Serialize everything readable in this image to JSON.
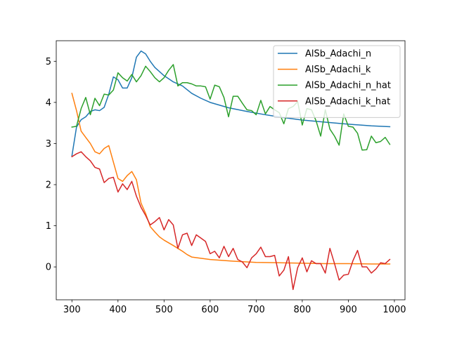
{
  "chart_data": {
    "type": "line",
    "title": "",
    "xlabel": "",
    "ylabel": "",
    "xlim": [
      266,
      1023
    ],
    "ylim": [
      -0.8,
      5.5
    ],
    "xticks": [
      300,
      400,
      500,
      600,
      700,
      800,
      900,
      1000
    ],
    "yticks": [
      0,
      1,
      2,
      3,
      4,
      5
    ],
    "grid": false,
    "legend_position": "top-right",
    "series": [
      {
        "name": "AlSb_Adachi_n",
        "color": "#1f77b4",
        "x": [
          300,
          310,
          320,
          330,
          340,
          350,
          360,
          370,
          380,
          390,
          400,
          410,
          420,
          430,
          440,
          450,
          460,
          470,
          480,
          490,
          500,
          520,
          540,
          560,
          580,
          600,
          640,
          680,
          720,
          760,
          800,
          850,
          900,
          950,
          990
        ],
        "y": [
          2.7,
          3.4,
          3.58,
          3.65,
          3.78,
          3.82,
          3.8,
          3.88,
          4.2,
          4.62,
          4.55,
          4.35,
          4.35,
          4.6,
          5.1,
          5.25,
          5.18,
          5.0,
          4.85,
          4.75,
          4.65,
          4.5,
          4.4,
          4.22,
          4.1,
          4.0,
          3.87,
          3.78,
          3.7,
          3.63,
          3.57,
          3.52,
          3.47,
          3.43,
          3.41
        ]
      },
      {
        "name": "AlSb_Adachi_k",
        "color": "#ff7f0e",
        "x": [
          300,
          310,
          320,
          330,
          340,
          350,
          360,
          370,
          380,
          390,
          400,
          410,
          420,
          430,
          440,
          450,
          460,
          470,
          480,
          490,
          500,
          520,
          540,
          550,
          560,
          600,
          650,
          700,
          750,
          800,
          850,
          900,
          950,
          990
        ],
        "y": [
          4.22,
          3.8,
          3.3,
          3.15,
          3.0,
          2.8,
          2.75,
          2.88,
          2.95,
          2.55,
          2.15,
          2.08,
          2.22,
          2.32,
          2.12,
          1.55,
          1.3,
          0.98,
          0.85,
          0.73,
          0.65,
          0.52,
          0.38,
          0.3,
          0.24,
          0.18,
          0.14,
          0.11,
          0.1,
          0.09,
          0.08,
          0.08,
          0.07,
          0.07
        ]
      },
      {
        "name": "AlSb_Adachi_n_hat",
        "color": "#2ca02c",
        "x": [
          300,
          310,
          320,
          330,
          340,
          350,
          360,
          370,
          380,
          390,
          400,
          410,
          420,
          430,
          440,
          450,
          460,
          470,
          480,
          490,
          500,
          510,
          520,
          530,
          540,
          550,
          560,
          570,
          580,
          590,
          600,
          610,
          620,
          630,
          640,
          650,
          660,
          670,
          680,
          690,
          700,
          710,
          720,
          730,
          740,
          750,
          760,
          770,
          780,
          790,
          800,
          810,
          820,
          830,
          840,
          850,
          860,
          870,
          880,
          890,
          900,
          910,
          920,
          930,
          940,
          950,
          960,
          970,
          980,
          990
        ],
        "y": [
          3.4,
          3.42,
          3.85,
          4.12,
          3.7,
          4.1,
          3.92,
          4.2,
          4.18,
          4.3,
          4.72,
          4.6,
          4.52,
          4.68,
          4.5,
          4.65,
          4.88,
          4.75,
          4.6,
          4.5,
          4.6,
          4.78,
          4.92,
          4.4,
          4.48,
          4.48,
          4.45,
          4.4,
          4.4,
          4.38,
          4.08,
          4.42,
          4.38,
          4.12,
          3.65,
          4.15,
          4.15,
          3.98,
          3.82,
          3.8,
          3.7,
          4.05,
          3.72,
          3.9,
          3.82,
          3.75,
          3.48,
          3.85,
          3.9,
          4.02,
          3.45,
          3.85,
          3.82,
          3.55,
          3.18,
          3.82,
          3.35,
          3.18,
          2.96,
          3.72,
          3.42,
          3.4,
          3.25,
          2.84,
          2.85,
          3.18,
          3.02,
          3.05,
          3.15,
          2.98
        ]
      },
      {
        "name": "AlSb_Adachi_k_hat",
        "color": "#d62728",
        "x": [
          300,
          310,
          320,
          330,
          340,
          350,
          360,
          370,
          380,
          390,
          400,
          410,
          420,
          430,
          440,
          450,
          460,
          470,
          480,
          490,
          500,
          510,
          520,
          530,
          540,
          550,
          560,
          570,
          580,
          590,
          600,
          610,
          620,
          630,
          640,
          650,
          660,
          670,
          680,
          690,
          700,
          710,
          720,
          730,
          740,
          750,
          760,
          770,
          780,
          790,
          800,
          810,
          820,
          830,
          840,
          850,
          860,
          870,
          880,
          890,
          900,
          910,
          920,
          930,
          940,
          950,
          960,
          970,
          980,
          990
        ],
        "y": [
          2.68,
          2.75,
          2.8,
          2.68,
          2.58,
          2.42,
          2.38,
          2.05,
          2.15,
          2.18,
          1.82,
          2.02,
          1.88,
          2.08,
          1.72,
          1.45,
          1.25,
          1.02,
          1.1,
          1.2,
          0.9,
          1.15,
          1.02,
          0.45,
          0.78,
          0.82,
          0.52,
          0.78,
          0.7,
          0.62,
          0.32,
          0.38,
          0.22,
          0.5,
          0.25,
          0.45,
          0.18,
          0.12,
          -0.02,
          0.22,
          0.32,
          0.48,
          0.25,
          0.25,
          0.28,
          -0.22,
          -0.08,
          0.25,
          -0.55,
          -0.02,
          0.22,
          -0.12,
          0.15,
          0.08,
          0.08,
          -0.15,
          0.45,
          0.08,
          -0.32,
          -0.2,
          -0.18,
          0.15,
          0.4,
          0.0,
          0.0,
          -0.15,
          -0.05,
          0.1,
          0.08,
          0.18
        ]
      }
    ]
  }
}
